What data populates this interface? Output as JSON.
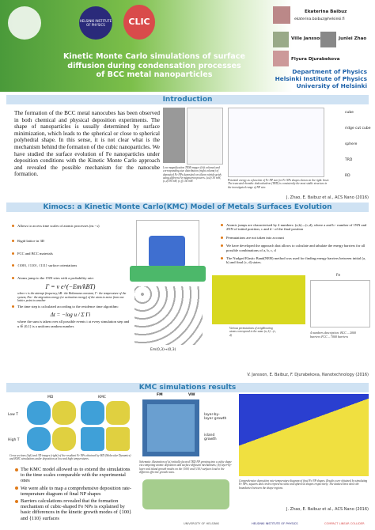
{
  "header": {
    "title": "Kinetic Monte Carlo simulations of surface diffusion during condensation processes of BCC metal nanoparticles",
    "hip_logo": "HELSINKI INSTITUTE OF PHYSICS",
    "clic_logo": "CLIC",
    "authors": [
      {
        "name": "Ekaterina Baibuz",
        "email": "ekaterina.baibuz@helsinki.fi"
      },
      {
        "name": "Ville Jansson"
      },
      {
        "name": "Junlei Zhao"
      },
      {
        "name": "Flyura Djurabekova"
      }
    ],
    "affiliations": [
      "Department of Physics",
      "Helsinki Institute of Physics",
      "University of Helsinki"
    ]
  },
  "introduction": {
    "heading": "Introduction",
    "text": "The formation of the BCC metal nanocubes has been observed in both chemical and physical deposition experiments. The shape of nanoparticles is usually determined by surface minimization, which leads to the spherical or close to spherical polyhedral shape. In this sense, it is not clear what is the mechanism behind the formation of the cubic nanoparticles. We have studied the surface evolution of Fe nanoparticles under deposition conditions with the Kinetic Monte Carlo approach and revealed the possible mechanism for the nanocube formation.",
    "figure1_caption": "Low magnification TEM images (left column) and corresponding size distribution (right column) of deposited Fe NPs deposited on silicon nitride grids using different Ar magnetron powers. (a,b) 30 mW, (c,d) 95 mW, (e,f) 150 mW.",
    "figure2_caption": "Potential energy as a function of Fe NP size for Fe NPs shapes shown on the right. Inset: The truncated rhombic dodecahedron (TRD) is consistently the most stable structure in the investigated range of NP size.",
    "shapes": [
      "cube",
      "ridge cut cube",
      "sphere",
      "TRD",
      "RD"
    ],
    "citation": "J. Zhao, E. Baibuz et al., ACS Nano (2016)"
  },
  "kimocs": {
    "heading": "Kimocs: a Kinetic Monte Carlo(KMC) Model of Metals Surfaces Evolution",
    "left_bullets": [
      "Allows to access time scales of atomic processes (ns - s)",
      "Rigid lattice in 3D",
      "FCC and BCC materials",
      "{100}, {110}, {111} surface orientations",
      "Atoms jump to the 1NN sites with a probability rate:"
    ],
    "rate_formula": "Γ = ν e^(−Em/kBT)",
    "rate_explanation": "where ν is the attempt frequency, kB - the Boltzmann constant, T - the temperature of the system, Em - the migration energy (or activation energy) of the atom to move from one lattice point to another",
    "time_bullet": "The time step is calculated according to the residence time algorithm:",
    "time_formula": "Δt = −log u / Σ Γi",
    "time_explanation": "where the sum is taken over all possible events i at every simulation step and u ∈ (0,1] is a uniform random number.",
    "lattice_label": "Em(0,3)→(0,3)",
    "right_bullets": [
      "Atomic jumps are characterised by 4 numbers: (a,b)→(c,d), where a and b - number of 1NN and 2NN of initial position, c and d - of the final position",
      "Permutations are not taken into account",
      "We have developed the approach that allows to calculate and tabulate the energy barriers for all possible combinations of a, b, c, d",
      "The Nudged Elastic Band(NEB) method was used for finding energy barriers between initial (a, b) and final (c, d) states."
    ],
    "permutation_caption": "Various permutations of neighbouring atoms correspond to the same (a, b)→(c, d)",
    "plot_label": "Fe",
    "description": "4 numbers description: BCC – 2000 barriers FCC – 7000 barriers",
    "citation": "V. Jansson, E. Baibuz, F. Djurabekova, Nanotechnology (2016)"
  },
  "results": {
    "heading": "KMC simulations results",
    "columns": [
      "MD",
      "KMC"
    ],
    "rows": [
      "Low T",
      "High T"
    ],
    "figure_caption": "Cross sections (left) and 3D images (right) of the resultant Fe NPs obtained by MD (Molecular Dynamics) and KMC simulations under deposition at low and high temperatures.",
    "bullets": [
      "The KMC model allowed us to extend the simulations to the time scales comparable with the experimental ones",
      "We were able to map a comprehensive deposition rate-temperature diagram of final NP shapes",
      "Barriers calculations revealed that the formation mechanism of cubic-shaped Fe NPs is explained by basic differences in the kinetic growth modes of {100} and {110} surfaces"
    ],
    "growth_labels": [
      "FM",
      "VW",
      "layer-by-layer growth",
      "island growth"
    ],
    "schematic_caption": "Schematic illustration of (a) initially faceted TRD NP growing into a cubic shape via competing atomic deposition and surface diffusion mechanisms; (b) layer-by-layer and island growth modes on the {100} and {110} surfaces lead to the different effective growth rates.",
    "diagram_caption": "Comprehensive deposition rate-temperature diagram of final Fe NP shapes. Results were obtained by simulating Fe NPs; squares and circles represent cubic and spherical shapes respectively. The dashed lines show the boundaries between the shape regions.",
    "citation": "J. Zhao, E. Baibuz et al., ACS Nano (2016)"
  },
  "footer": [
    "UNIVERSITY OF HELSINKI",
    "HELSINKI INSTITUTE OF PHYSICS",
    "COMPACT LINEAR COLLIDER"
  ]
}
